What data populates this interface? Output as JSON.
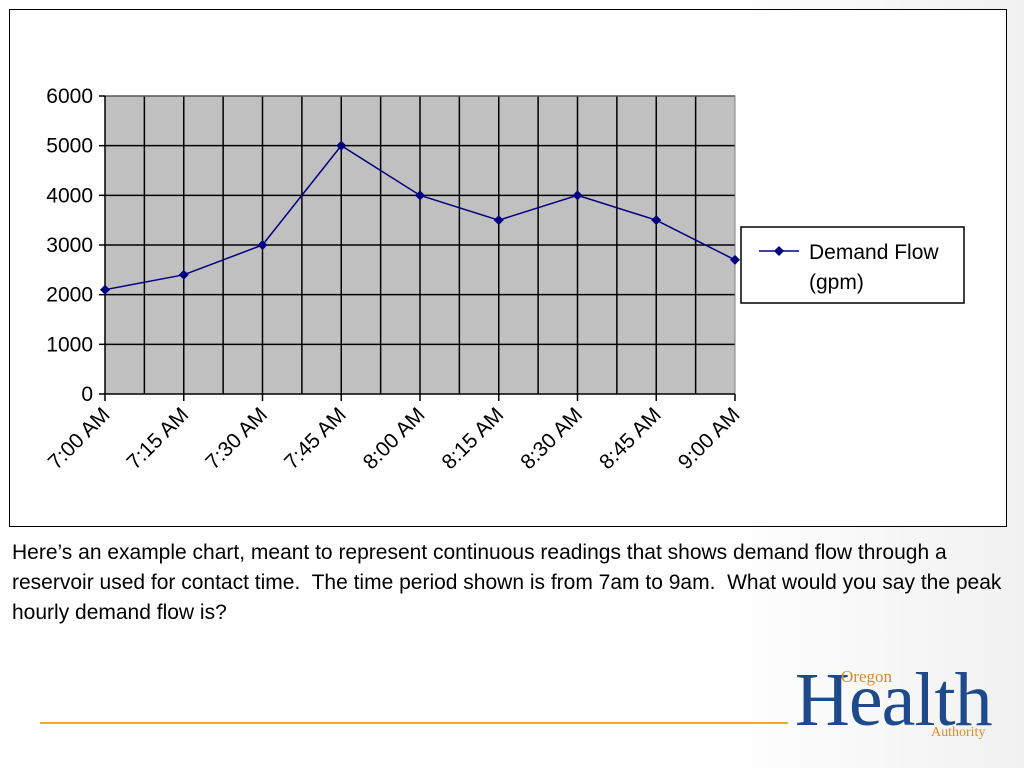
{
  "chart_data": {
    "type": "line",
    "categories": [
      "7:00 AM",
      "7:15 AM",
      "7:30 AM",
      "7:45 AM",
      "8:00 AM",
      "8:15 AM",
      "8:30 AM",
      "8:45 AM",
      "9:00 AM"
    ],
    "series": [
      {
        "name": "Demand Flow (gpm)",
        "values": [
          2100,
          2400,
          3000,
          5000,
          4000,
          3500,
          4000,
          3500,
          2700
        ],
        "color": "#000080"
      }
    ],
    "y_ticks": [
      "0",
      "1000",
      "2000",
      "3000",
      "4000",
      "5000",
      "6000"
    ],
    "ylim": [
      0,
      6000
    ],
    "grid": true,
    "plot_background": "#c0c0c0",
    "legend_position": "right",
    "legend_lines": [
      "Demand Flow",
      "(gpm)"
    ]
  },
  "caption": "Here’s an example chart, meant to represent continuous readings that shows demand flow through a reservoir used for contact time.  The time period shown is from 7am to 9am.  What would you say the peak hourly demand flow is?",
  "logo": {
    "oregon": "Oregon",
    "health": "Health",
    "authority": "Authority"
  },
  "colors": {
    "accent_line": "#f0a830",
    "logo_blue": "#1e4a8c",
    "logo_orange": "#e08a1e"
  }
}
